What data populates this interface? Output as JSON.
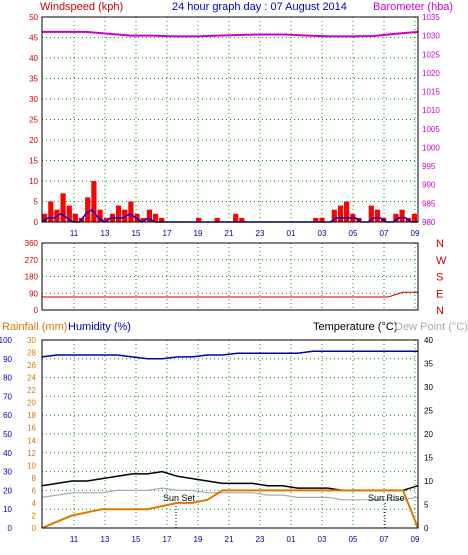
{
  "header": {
    "windspeed_label": "Windspeed (kph)",
    "title": "24 hour graph day : 07 August 2014",
    "barometer_label": "Barometer (hba)"
  },
  "bottom_header": {
    "rainfall_label": "Rainfall (mm)",
    "humidity_label": "Humidity (%)",
    "temperature_label": "Temperature (°C)",
    "dewpoint_label": "Dew Point (°C)"
  },
  "annotations": {
    "sunset": "Sun Set",
    "sunrise": "Sun Rise"
  },
  "colors": {
    "windspeed": "#cc0000",
    "gust": "#ff0000",
    "wind_avg": "#0000cc",
    "barometer": "#cc00cc",
    "direction": "#cc0000",
    "rainfall": "#dd7700",
    "humidity": "#0000aa",
    "temperature": "#000000",
    "dewpoint": "#aaaaaa",
    "grid": "#009900"
  },
  "chart_data": [
    {
      "type": "line",
      "name": "wind_barometer",
      "x_ticks": [
        "11",
        "13",
        "15",
        "17",
        "19",
        "21",
        "23",
        "01",
        "03",
        "05",
        "07",
        "09"
      ],
      "left_axis": {
        "label": "Windspeed (kph)",
        "ylim": [
          0,
          50
        ],
        "ticks": [
          "0",
          "5",
          "10",
          "15",
          "20",
          "25",
          "30",
          "35",
          "40",
          "45",
          "50"
        ]
      },
      "right_axis": {
        "label": "Barometer (hba)",
        "ylim": [
          980,
          1035
        ],
        "ticks": [
          "980",
          "985",
          "990",
          "995",
          "1000",
          "1005",
          "1010",
          "1015",
          "1020",
          "1025",
          "1030",
          "1035"
        ]
      },
      "series": [
        {
          "name": "Windspeed (kph)",
          "values": [
            2,
            5,
            3,
            7,
            4,
            2,
            1,
            6,
            10,
            3,
            1,
            2,
            4,
            3,
            5,
            2,
            1,
            3,
            2,
            1,
            0,
            0,
            0,
            0,
            0,
            1,
            0,
            0,
            1,
            0,
            0,
            2,
            1,
            0,
            0,
            0,
            0,
            0,
            0,
            0,
            0,
            0,
            0,
            0,
            1,
            1,
            0,
            3,
            4,
            5,
            2,
            1,
            0,
            4,
            3,
            1,
            0,
            2,
            3,
            1,
            2
          ]
        },
        {
          "name": "Wind avg",
          "values": [
            0,
            1,
            1,
            2,
            1,
            0,
            0,
            2,
            3,
            1,
            0,
            1,
            1,
            1,
            2,
            1,
            0,
            1,
            0,
            0,
            0,
            0,
            0,
            0,
            0,
            0,
            0,
            0,
            0,
            0,
            0,
            0,
            0,
            0,
            0,
            0,
            0,
            0,
            0,
            0,
            0,
            0,
            0,
            0,
            0,
            0,
            0,
            1,
            1,
            1,
            1,
            0,
            0,
            1,
            1,
            0,
            0,
            1,
            1,
            0,
            0
          ]
        },
        {
          "name": "Barometer (hba)",
          "values": [
            1031,
            1031,
            1031,
            1030.5,
            1030,
            1030,
            1029.8,
            1029.8,
            1030,
            1030.2,
            1030.3,
            1030.3,
            1030,
            1029.8,
            1029.8,
            1029.9,
            1030.5,
            1031
          ]
        }
      ]
    },
    {
      "type": "line",
      "name": "wind_direction",
      "ylim": [
        0,
        360
      ],
      "y_ticks": [
        "0",
        "90",
        "180",
        "270",
        "360"
      ],
      "compass_labels": [
        "N",
        "W",
        "S",
        "E",
        "N"
      ],
      "series": [
        {
          "name": "Direction",
          "values": [
            70,
            70,
            70,
            70,
            70,
            70,
            70,
            70,
            70,
            70,
            70,
            70,
            70,
            70,
            70,
            70,
            70,
            70,
            70,
            70,
            70,
            70,
            70,
            70,
            95,
            95
          ]
        }
      ]
    },
    {
      "type": "line",
      "name": "rain_humidity_temperature",
      "left_axis_outer": {
        "label": "Humidity (%)",
        "ylim": [
          0,
          100
        ],
        "ticks": [
          "0",
          "10",
          "20",
          "30",
          "40",
          "50",
          "60",
          "70",
          "80",
          "90",
          "100"
        ]
      },
      "left_axis_inner": {
        "label": "Rainfall (mm)",
        "ylim": [
          0,
          30
        ],
        "ticks": [
          "0",
          "2",
          "4",
          "6",
          "8",
          "10",
          "12",
          "14",
          "16",
          "18",
          "20",
          "22",
          "24",
          "26",
          "28",
          "30"
        ]
      },
      "right_axis": {
        "label": "Temperature (°C)",
        "ylim": [
          0,
          40
        ],
        "ticks": [
          "0",
          "5",
          "10",
          "15",
          "20",
          "25",
          "30",
          "35",
          "40"
        ]
      },
      "series": [
        {
          "name": "Humidity (%)",
          "values": [
            91,
            92,
            92,
            92,
            92,
            92,
            91,
            90,
            90,
            91,
            91,
            92,
            92,
            93,
            93,
            93,
            93,
            93,
            94,
            94,
            94,
            94,
            94,
            94,
            94,
            94
          ]
        },
        {
          "name": "Temperature (°C)",
          "values": [
            9,
            9.5,
            10,
            10,
            10.5,
            11,
            11.5,
            11.5,
            12,
            11,
            10.5,
            10,
            9.5,
            9.5,
            9.5,
            9,
            9,
            8.5,
            8.5,
            8.5,
            8,
            8,
            8,
            8,
            8,
            9
          ]
        },
        {
          "name": "Dew Point (°C)",
          "values": [
            6.5,
            7,
            7.5,
            7.5,
            7.5,
            8,
            8,
            8,
            8.5,
            8,
            8,
            7.5,
            7.5,
            7.5,
            7.5,
            7,
            7,
            6.5,
            6.5,
            6.5,
            6,
            6,
            6,
            6,
            6,
            6.5
          ]
        },
        {
          "name": "Rainfall (mm)",
          "values": [
            0,
            1,
            2,
            2.5,
            3,
            3,
            3,
            3,
            3.5,
            4,
            4,
            4.5,
            6,
            6,
            6,
            6,
            6,
            6,
            6,
            6,
            6,
            6,
            6,
            6,
            6,
            0
          ]
        }
      ]
    }
  ]
}
